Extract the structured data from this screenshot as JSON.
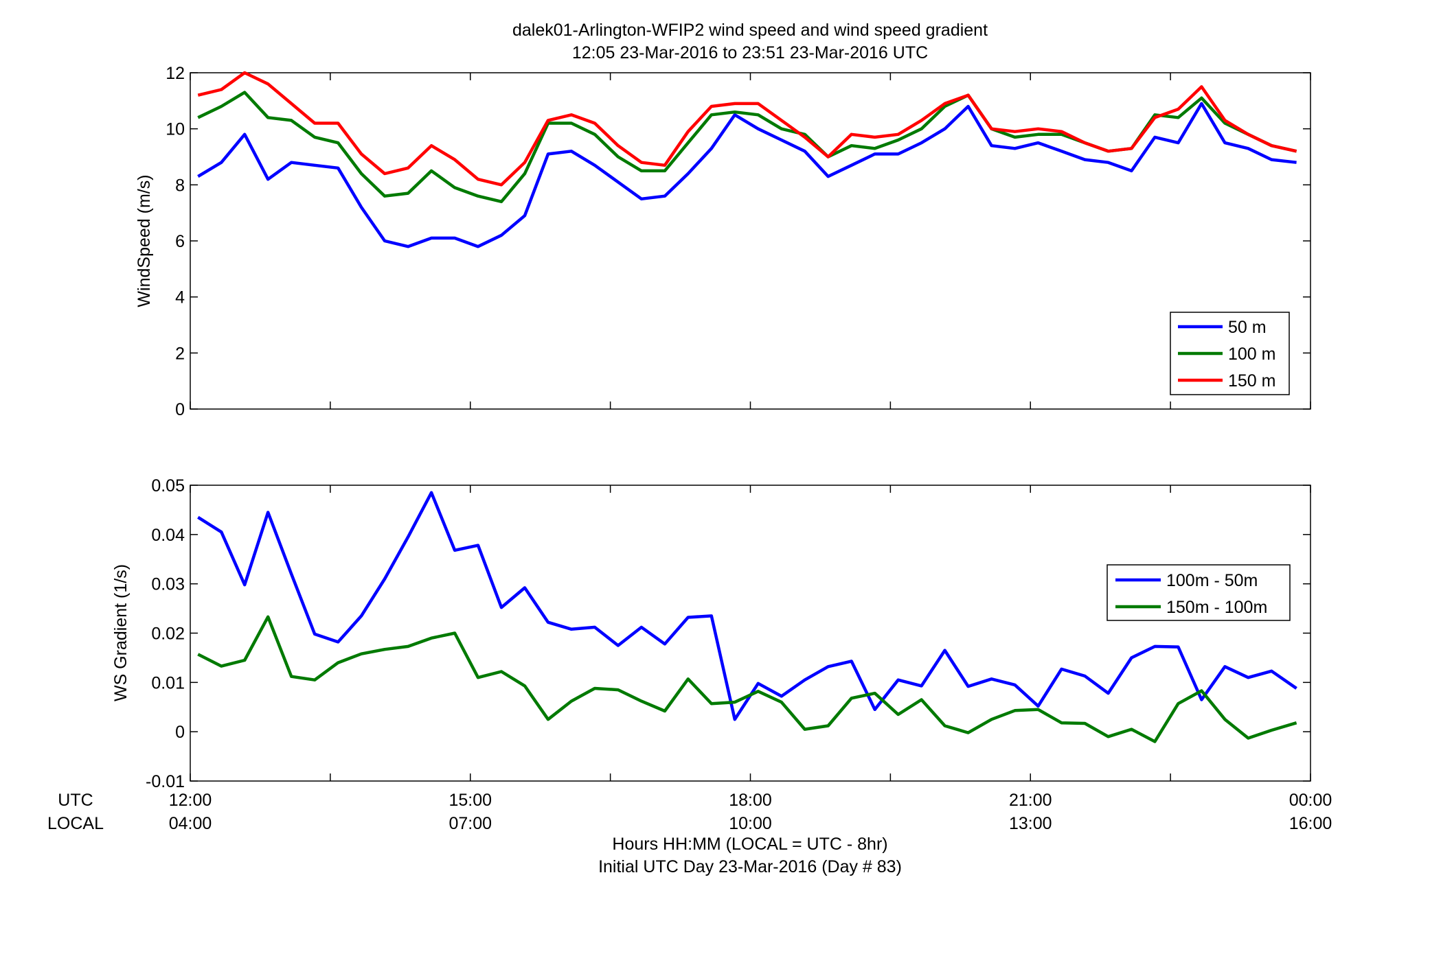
{
  "figure": {
    "title_line1": "dalek01-Arlington-WFIP2  wind speed and wind speed gradient",
    "title_line2": "12:05 23-Mar-2016 to 23:51 23-Mar-2016  UTC",
    "row_label_utc": "UTC",
    "row_label_local": "LOCAL",
    "xlabel_line1": "Hours HH:MM  (LOCAL = UTC - 8hr)",
    "xlabel_line2": "Initial UTC Day 23-Mar-2016 (Day # 83)",
    "x_ticks_utc": [
      "12:00",
      "15:00",
      "18:00",
      "21:00",
      "00:00"
    ],
    "x_ticks_local": [
      "04:00",
      "07:00",
      "10:00",
      "13:00",
      "16:00"
    ]
  },
  "chart_data": [
    {
      "type": "line",
      "title": "",
      "xlabel": "",
      "ylabel": "WindSpeed (m/s)",
      "xlim": [
        12.0,
        24.0
      ],
      "ylim": [
        0,
        12
      ],
      "yticks": [
        0,
        2,
        4,
        6,
        8,
        10,
        12
      ],
      "yticklabels": [
        "0",
        "2",
        "4",
        "6",
        "8",
        "10",
        "12"
      ],
      "grid": false,
      "legend_position": "bottom-right",
      "x": [
        12.083,
        12.333,
        12.583,
        12.833,
        13.083,
        13.333,
        13.583,
        13.833,
        14.083,
        14.333,
        14.583,
        14.833,
        15.083,
        15.333,
        15.583,
        15.833,
        16.083,
        16.333,
        16.583,
        16.833,
        17.083,
        17.333,
        17.583,
        17.833,
        18.083,
        18.333,
        18.583,
        18.833,
        19.083,
        19.333,
        19.583,
        19.833,
        20.083,
        20.333,
        20.583,
        20.833,
        21.083,
        21.333,
        21.583,
        21.833,
        22.083,
        22.333,
        22.583,
        22.833,
        23.083,
        23.333,
        23.583,
        23.85
      ],
      "series": [
        {
          "name": "50 m",
          "color": "#0000ff",
          "values": [
            8.3,
            8.8,
            9.8,
            8.2,
            8.8,
            8.7,
            8.6,
            7.2,
            6.0,
            5.8,
            6.1,
            6.1,
            5.8,
            6.2,
            6.9,
            9.1,
            9.2,
            8.7,
            8.1,
            7.5,
            7.6,
            8.4,
            9.3,
            10.5,
            10.0,
            9.6,
            9.2,
            8.3,
            8.7,
            9.1,
            9.1,
            9.5,
            10.0,
            10.8,
            9.4,
            9.3,
            9.5,
            9.2,
            8.9,
            8.8,
            8.5,
            9.7,
            9.5,
            10.9,
            9.5,
            9.3,
            8.9,
            8.8
          ]
        },
        {
          "name": "100 m",
          "color": "#007a00",
          "values": [
            10.4,
            10.8,
            11.3,
            10.4,
            10.3,
            9.7,
            9.5,
            8.4,
            7.6,
            7.7,
            8.5,
            7.9,
            7.6,
            7.4,
            8.4,
            10.2,
            10.2,
            9.8,
            9.0,
            8.5,
            8.5,
            9.5,
            10.5,
            10.6,
            10.5,
            10.0,
            9.8,
            9.0,
            9.4,
            9.3,
            9.6,
            10.0,
            10.8,
            11.2,
            10.0,
            9.7,
            9.8,
            9.8,
            9.5,
            9.2,
            9.3,
            10.5,
            10.4,
            11.1,
            10.2,
            9.8,
            9.4,
            9.2
          ]
        },
        {
          "name": "150 m",
          "color": "#ff0000",
          "values": [
            11.2,
            11.4,
            12.0,
            11.6,
            10.9,
            10.2,
            10.2,
            9.1,
            8.4,
            8.6,
            9.4,
            8.9,
            8.2,
            8.0,
            8.8,
            10.3,
            10.5,
            10.2,
            9.4,
            8.8,
            8.7,
            9.9,
            10.8,
            10.9,
            10.9,
            10.3,
            9.7,
            9.0,
            9.8,
            9.7,
            9.8,
            10.3,
            10.9,
            11.2,
            10.0,
            9.9,
            10.0,
            9.9,
            9.5,
            9.2,
            9.3,
            10.4,
            10.7,
            11.5,
            10.3,
            9.8,
            9.4,
            9.2
          ]
        }
      ]
    },
    {
      "type": "line",
      "title": "",
      "xlabel": "",
      "ylabel": "WS Gradient (1/s)",
      "xlim": [
        12.0,
        24.0
      ],
      "ylim": [
        -0.01,
        0.05
      ],
      "yticks": [
        -0.01,
        0,
        0.01,
        0.02,
        0.03,
        0.04,
        0.05
      ],
      "yticklabels": [
        "-0.01",
        "0",
        "0.01",
        "0.02",
        "0.03",
        "0.04",
        "0.05"
      ],
      "grid": false,
      "legend_position": "right",
      "x": [
        12.083,
        12.333,
        12.583,
        12.833,
        13.083,
        13.333,
        13.583,
        13.833,
        14.083,
        14.333,
        14.583,
        14.833,
        15.083,
        15.333,
        15.583,
        15.833,
        16.083,
        16.333,
        16.583,
        16.833,
        17.083,
        17.333,
        17.583,
        17.833,
        18.083,
        18.333,
        18.583,
        18.833,
        19.083,
        19.333,
        19.583,
        19.833,
        20.083,
        20.333,
        20.583,
        20.833,
        21.083,
        21.333,
        21.583,
        21.833,
        22.083,
        22.333,
        22.583,
        22.833,
        23.083,
        23.333,
        23.583,
        23.85
      ],
      "series": [
        {
          "name": "100m - 50m",
          "color": "#0000ff",
          "values": [
            0.0435,
            0.0405,
            0.0298,
            0.0445,
            0.032,
            0.0198,
            0.0182,
            0.0235,
            0.031,
            0.0395,
            0.0485,
            0.0368,
            0.0378,
            0.0252,
            0.0292,
            0.0222,
            0.0208,
            0.0212,
            0.0175,
            0.0212,
            0.0178,
            0.0232,
            0.0235,
            0.0025,
            0.0098,
            0.0072,
            0.0105,
            0.0132,
            0.0143,
            0.0045,
            0.0105,
            0.0093,
            0.0165,
            0.0092,
            0.0107,
            0.0095,
            0.0052,
            0.0127,
            0.0113,
            0.0078,
            0.015,
            0.0173,
            0.0172,
            0.0065,
            0.0132,
            0.011,
            0.0123,
            0.0088
          ]
        },
        {
          "name": "150m - 100m",
          "color": "#007a00",
          "values": [
            0.0157,
            0.0133,
            0.0145,
            0.0233,
            0.0112,
            0.0105,
            0.014,
            0.0158,
            0.0167,
            0.0173,
            0.019,
            0.02,
            0.011,
            0.0122,
            0.0093,
            0.0025,
            0.0062,
            0.0088,
            0.0085,
            0.0062,
            0.0042,
            0.0107,
            0.0057,
            0.006,
            0.0082,
            0.006,
            0.0005,
            0.0012,
            0.0068,
            0.0078,
            0.0035,
            0.0065,
            0.0012,
            -0.0002,
            0.0025,
            0.0043,
            0.0045,
            0.0018,
            0.0017,
            -0.001,
            0.0005,
            -0.002,
            0.0057,
            0.0083,
            0.0025,
            -0.0013,
            0.0003,
            0.0018
          ]
        }
      ]
    }
  ]
}
